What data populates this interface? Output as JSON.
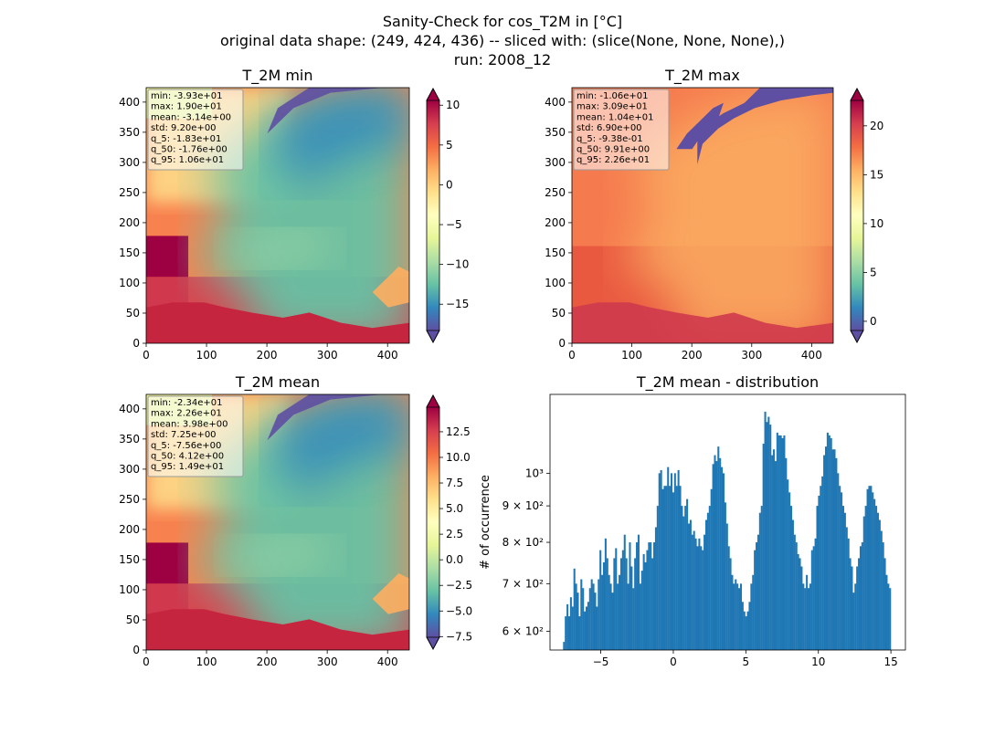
{
  "figure": {
    "title_line1": "Sanity-Check for cos_T2M in [°C]",
    "title_line2": "original data shape: (249, 424, 436) -- sliced with: (slice(None, None, None),)",
    "title_line3": "run: 2008_12"
  },
  "chart_data": [
    {
      "type": "heatmap",
      "title": "T_2M min",
      "xlim": [
        0,
        436
      ],
      "ylim": [
        0,
        424
      ],
      "xticks": [
        0,
        100,
        200,
        300,
        400
      ],
      "yticks": [
        0,
        50,
        100,
        150,
        200,
        250,
        300,
        350,
        400
      ],
      "colormap": "Spectral_r",
      "colorbar": {
        "vmin": -18.3,
        "vmax": 10.6,
        "ticks": [
          10,
          5,
          0,
          -5,
          -10,
          -15
        ],
        "tick_labels": [
          "10",
          "5",
          "0",
          "−5",
          "−10",
          "−15"
        ],
        "extend": "both"
      },
      "stats": [
        "min: -3.93e+01",
        "max: 1.90e+01",
        "mean: -3.14e+00",
        "std: 9.20e+00",
        "q_5: -1.83e+01",
        "q_50: -1.76e+00",
        "q_95: 1.06e+01"
      ]
    },
    {
      "type": "heatmap",
      "title": "T_2M max",
      "xlim": [
        0,
        436
      ],
      "ylim": [
        0,
        424
      ],
      "xticks": [
        0,
        100,
        200,
        300,
        400
      ],
      "yticks": [
        0,
        50,
        100,
        150,
        200,
        250,
        300,
        350,
        400
      ],
      "colormap": "Spectral_r",
      "colorbar": {
        "vmin": -0.94,
        "vmax": 22.6,
        "ticks": [
          20,
          15,
          10,
          5,
          0
        ],
        "tick_labels": [
          "20",
          "15",
          "10",
          "5",
          "0"
        ],
        "extend": "both"
      },
      "stats": [
        "min: -1.06e+01",
        "max: 3.09e+01",
        "mean: 1.04e+01",
        "std: 6.90e+00",
        "q_5: -9.38e-01",
        "q_50: 9.91e+00",
        "q_95: 2.26e+01"
      ]
    },
    {
      "type": "heatmap",
      "title": "T_2M mean",
      "xlim": [
        0,
        436
      ],
      "ylim": [
        0,
        424
      ],
      "xticks": [
        0,
        100,
        200,
        300,
        400
      ],
      "yticks": [
        0,
        50,
        100,
        150,
        200,
        250,
        300,
        350,
        400
      ],
      "colormap": "Spectral_r",
      "colorbar": {
        "vmin": -7.56,
        "vmax": 14.9,
        "ticks": [
          12.5,
          10.0,
          7.5,
          5.0,
          2.5,
          0.0,
          -2.5,
          -5.0,
          -7.5
        ],
        "tick_labels": [
          "12.5",
          "10.0",
          "7.5",
          "5.0",
          "2.5",
          "0.0",
          "−2.5",
          "−5.0",
          "−7.5"
        ],
        "extend": "both"
      },
      "stats": [
        "min: -2.34e+01",
        "max: 2.26e+01",
        "mean: 3.98e+00",
        "std: 7.25e+00",
        "q_5: -7.56e+00",
        "q_50: 4.12e+00",
        "q_95: 1.49e+01"
      ]
    },
    {
      "type": "bar",
      "title": "T_2M mean - distribution",
      "ylabel": "# of occurrence",
      "yscale": "log",
      "xlim": [
        -8.5,
        16
      ],
      "ylim": [
        565,
        1290
      ],
      "xticks": [
        -5,
        0,
        5,
        10,
        15
      ],
      "xtick_labels": [
        "−5",
        "0",
        "5",
        "10",
        "15"
      ],
      "yticks": [
        600,
        700,
        800,
        900,
        1000
      ],
      "ytick_labels": [
        "6 × 10²",
        "7 × 10²",
        "8 × 10²",
        "9 × 10²",
        "10³"
      ],
      "bin_range": [
        -7.6,
        15.0
      ],
      "bin_counts": [
        580,
        630,
        655,
        630,
        670,
        650,
        735,
        700,
        680,
        630,
        710,
        690,
        640,
        650,
        660,
        690,
        710,
        700,
        680,
        650,
        710,
        780,
        720,
        750,
        810,
        760,
        720,
        700,
        680,
        760,
        785,
        700,
        720,
        760,
        780,
        820,
        760,
        700,
        800,
        740,
        690,
        760,
        800,
        820,
        700,
        730,
        770,
        750,
        780,
        800,
        800,
        760,
        800,
        840,
        900,
        1000,
        1010,
        950,
        960,
        960,
        1020,
        960,
        1000,
        940,
        1000,
        960,
        1010,
        960,
        900,
        870,
        900,
        920,
        850,
        860,
        820,
        830,
        810,
        790,
        810,
        790,
        780,
        820,
        860,
        880,
        900,
        950,
        1030,
        1060,
        1040,
        1090,
        1050,
        1020,
        1000,
        910,
        850,
        790,
        760,
        720,
        700,
        710,
        700,
        690,
        700,
        660,
        640,
        630,
        640,
        660,
        700,
        720,
        780,
        800,
        820,
        880,
        900,
        1100,
        1220,
        1180,
        1200,
        1170,
        1060,
        1080,
        1040,
        1140,
        1130,
        1130,
        1120,
        1130,
        1050,
        980,
        940,
        900,
        860,
        820,
        800,
        770,
        760,
        740,
        700,
        690,
        720,
        690,
        700,
        780,
        790,
        810,
        900,
        930,
        960,
        990,
        1060,
        1090,
        1140,
        1130,
        1120,
        1080,
        1080,
        1050,
        1000,
        960,
        940,
        900,
        880,
        840,
        810,
        760,
        740,
        680,
        700,
        740,
        760,
        790,
        800,
        870,
        900,
        950,
        960,
        960,
        940,
        920,
        900,
        880,
        860,
        830,
        800,
        760,
        720,
        700,
        690
      ]
    }
  ]
}
